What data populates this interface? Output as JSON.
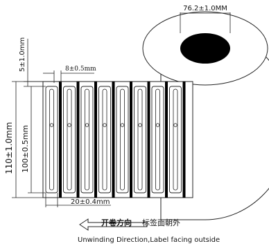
{
  "dimensions": {
    "core_diameter": "76.2±1.0MM",
    "top_margin": "5±1.0mm",
    "label_gap": "8±0.5mm",
    "roll_width": "110±1.0mm",
    "label_height": "100±0.5mm",
    "label_width": "20±0.4mm"
  },
  "direction": {
    "cn_primary": "开卷方向",
    "cn_secondary": "标签面朝外",
    "en": "Unwinding Direction,Label facing outside"
  },
  "label_count": 8
}
